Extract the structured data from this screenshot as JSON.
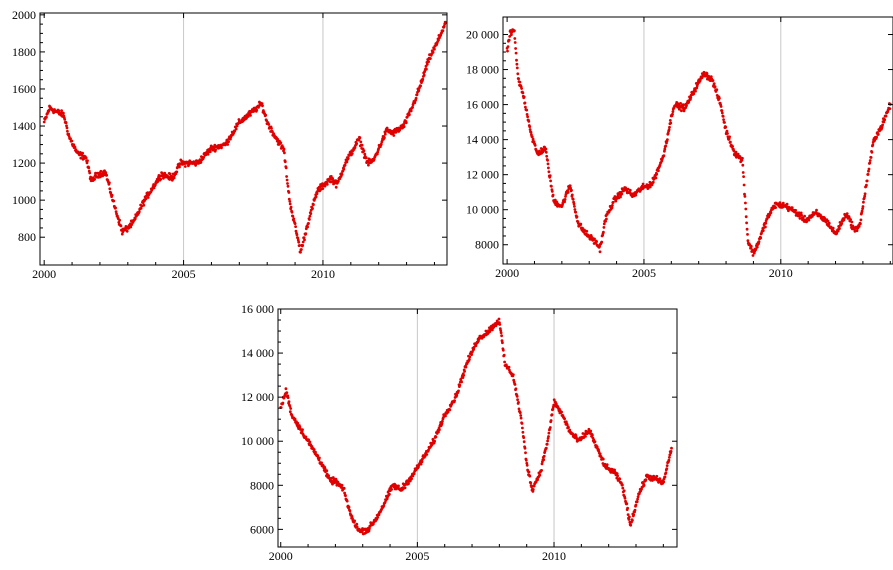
{
  "colors": {
    "points": "#e00000",
    "frame": "#000000",
    "gridline": "#c8c8c8",
    "background": "#ffffff"
  },
  "chart_data": [
    {
      "type": "scatter",
      "title": "",
      "xlabel": "",
      "ylabel": "",
      "xlim": [
        1999.85,
        2014.45
      ],
      "ylim": [
        650,
        2010
      ],
      "xticks": [
        2000,
        2005,
        2010
      ],
      "xtick_labels": [
        "2000",
        "2005",
        "2010"
      ],
      "yticks": [
        800,
        1000,
        1200,
        1400,
        1600,
        1800,
        2000
      ],
      "ytick_labels": [
        "800",
        "1000",
        "1200",
        "1400",
        "1600",
        "1800",
        "2000"
      ],
      "grid": "vertical lines at 2005 and 2010",
      "series": [
        {
          "color": "#e00000",
          "x": [
            2000.0,
            2000.2,
            2000.4,
            2000.7,
            2000.9,
            2001.2,
            2001.5,
            2001.7,
            2001.9,
            2002.2,
            2002.5,
            2002.7,
            2002.8,
            2003.0,
            2003.2,
            2003.6,
            2003.9,
            2004.2,
            2004.6,
            2004.9,
            2005.5,
            2006.0,
            2006.5,
            2007.0,
            2007.5,
            2007.8,
            2008.0,
            2008.3,
            2008.6,
            2008.8,
            2009.0,
            2009.2,
            2009.5,
            2009.8,
            2010.3,
            2010.5,
            2010.8,
            2011.3,
            2011.6,
            2011.8,
            2012.3,
            2012.5,
            2012.9,
            2013.2,
            2013.5,
            2013.8,
            2014.1,
            2014.4
          ],
          "y": [
            1420,
            1500,
            1480,
            1460,
            1340,
            1250,
            1230,
            1100,
            1140,
            1150,
            980,
            880,
            830,
            850,
            880,
            1000,
            1070,
            1140,
            1120,
            1200,
            1200,
            1280,
            1300,
            1420,
            1480,
            1520,
            1420,
            1340,
            1270,
            1000,
            860,
            720,
            900,
            1050,
            1120,
            1080,
            1200,
            1330,
            1200,
            1210,
            1380,
            1360,
            1400,
            1500,
            1620,
            1760,
            1850,
            1960
          ]
        }
      ]
    },
    {
      "type": "scatter",
      "title": "",
      "xlabel": "",
      "ylabel": "",
      "xlim": [
        1999.85,
        2014.1
      ],
      "ylim": [
        6900,
        21000
      ],
      "xticks": [
        2000,
        2005,
        2010
      ],
      "xtick_labels": [
        "2000",
        "2005",
        "2010"
      ],
      "yticks": [
        8000,
        10000,
        12000,
        14000,
        16000,
        18000,
        20000
      ],
      "ytick_labels": [
        "8000",
        "10 000",
        "12 000",
        "14 000",
        "16 000",
        "18 000",
        "20 000"
      ],
      "grid": "vertical lines at 2005 and 2010",
      "series": [
        {
          "color": "#e00000",
          "x": [
            2000.0,
            2000.1,
            2000.25,
            2000.4,
            2000.6,
            2000.9,
            2001.1,
            2001.4,
            2001.7,
            2002.0,
            2002.3,
            2002.6,
            2002.9,
            2003.2,
            2003.4,
            2003.6,
            2003.9,
            2004.3,
            2004.6,
            2004.9,
            2005.3,
            2005.7,
            2006.1,
            2006.5,
            2006.9,
            2007.2,
            2007.5,
            2007.8,
            2008.0,
            2008.3,
            2008.6,
            2008.8,
            2009.0,
            2009.2,
            2009.5,
            2009.8,
            2010.2,
            2010.6,
            2010.9,
            2011.3,
            2011.7,
            2012.0,
            2012.4,
            2012.7,
            2012.9,
            2013.1,
            2013.4,
            2013.7,
            2014.0
          ],
          "y": [
            19000,
            20000,
            20300,
            17500,
            16500,
            14200,
            13200,
            13500,
            10500,
            10200,
            11400,
            9200,
            8600,
            8200,
            7800,
            9500,
            10500,
            11200,
            10800,
            11200,
            11500,
            13000,
            16000,
            15800,
            17000,
            17800,
            17400,
            16000,
            14500,
            13300,
            12800,
            8200,
            7500,
            8200,
            9500,
            10300,
            10200,
            9800,
            9400,
            9800,
            9300,
            8600,
            9800,
            8800,
            9200,
            11200,
            14000,
            14800,
            16000
          ]
        }
      ]
    },
    {
      "type": "scatter",
      "title": "",
      "xlabel": "",
      "ylabel": "",
      "xlim": [
        1999.9,
        2014.5
      ],
      "ylim": [
        5200,
        16000
      ],
      "xticks": [
        2000,
        2005,
        2010
      ],
      "xtick_labels": [
        "2000",
        "2005",
        "2010"
      ],
      "yticks": [
        6000,
        8000,
        10000,
        12000,
        14000,
        16000
      ],
      "ytick_labels": [
        "6000",
        "8000",
        "10 000",
        "12 000",
        "14 000",
        "16 000"
      ],
      "grid": "vertical lines at 2005 and 2010",
      "series": [
        {
          "color": "#e00000",
          "x": [
            2000.0,
            2000.2,
            2000.4,
            2000.6,
            2000.9,
            2001.2,
            2001.5,
            2001.8,
            2002.0,
            2002.3,
            2002.6,
            2002.9,
            2003.2,
            2003.5,
            2003.8,
            2004.1,
            2004.4,
            2004.8,
            2005.2,
            2005.6,
            2006.0,
            2006.4,
            2006.8,
            2007.2,
            2007.6,
            2008.0,
            2008.2,
            2008.5,
            2008.8,
            2009.0,
            2009.2,
            2009.5,
            2009.8,
            2010.0,
            2010.3,
            2010.6,
            2010.9,
            2011.3,
            2011.6,
            2011.9,
            2012.2,
            2012.5,
            2012.8,
            2013.1,
            2013.4,
            2013.7,
            2014.0,
            2014.3
          ],
          "y": [
            11500,
            12300,
            11200,
            10800,
            10200,
            9600,
            9000,
            8200,
            8200,
            7800,
            6500,
            5900,
            6000,
            6500,
            7200,
            8000,
            7800,
            8400,
            9200,
            10000,
            11200,
            12000,
            13500,
            14600,
            15000,
            15500,
            13500,
            13000,
            11000,
            9000,
            7800,
            8600,
            10200,
            11800,
            11200,
            10400,
            10000,
            10500,
            9600,
            8800,
            8600,
            8000,
            6200,
            7600,
            8400,
            8300,
            8100,
            9700
          ]
        }
      ]
    }
  ]
}
